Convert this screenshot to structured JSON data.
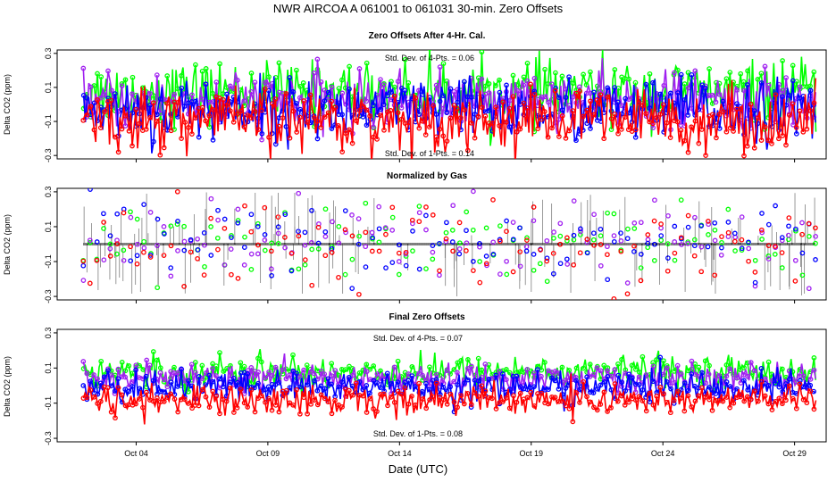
{
  "figure": {
    "main_title": "NWR   AIRCOA A   061001 to 061031   30-min. Zero Offsets",
    "xlabel": "Date (UTC)"
  },
  "colors": {
    "red": "#ff0000",
    "green": "#00ff00",
    "blue": "#0000ff",
    "purple": "#a020f0",
    "black": "#000000"
  },
  "chart_data": [
    {
      "type": "line",
      "title": "Zero Offsets After 4-Hr. Cal.",
      "ylabel": "Delta CO2 (ppm)",
      "xlim": [
        1.0,
        30.2
      ],
      "ylim": [
        -0.32,
        0.32
      ],
      "yticks": [
        -0.3,
        -0.1,
        0.1,
        0.3
      ],
      "ytick_labels": [
        "-0.3",
        "-0.1",
        "0.1",
        "0.3"
      ],
      "xticks": [
        4,
        9,
        14,
        19,
        24,
        29
      ],
      "xtick_labels": [
        "Oct 04",
        "Oct 09",
        "Oct 14",
        "Oct 19",
        "Oct 24",
        "Oct 29"
      ],
      "annotations": [
        "Std. Dev. of 4-Pts. = 0.06",
        "Std. Dev. of 1-Pts. = 0.14"
      ],
      "series": [
        {
          "name": "green",
          "color": "green",
          "x_start": 2.0,
          "x_end": 29.8,
          "points": 420,
          "mean": 0.07,
          "sd": 0.09
        },
        {
          "name": "purple",
          "color": "purple",
          "x_start": 2.0,
          "x_end": 29.8,
          "points": 420,
          "mean": 0.02,
          "sd": 0.08
        },
        {
          "name": "blue",
          "color": "blue",
          "x_start": 2.0,
          "x_end": 29.8,
          "points": 420,
          "mean": -0.03,
          "sd": 0.09
        },
        {
          "name": "red",
          "color": "red",
          "x_start": 2.0,
          "x_end": 29.8,
          "points": 420,
          "mean": -0.09,
          "sd": 0.09
        }
      ]
    },
    {
      "type": "scatter",
      "title": "Normalized by Gas",
      "ylabel": "Delta CO2 (ppm)",
      "xlim": [
        1.0,
        30.2
      ],
      "ylim": [
        -0.32,
        0.32
      ],
      "yticks": [
        -0.3,
        -0.1,
        0.1,
        0.3
      ],
      "ytick_labels": [
        "-0.3",
        "-0.1",
        "0.1",
        "0.3"
      ],
      "xticks": [
        4,
        9,
        14,
        19,
        24,
        29
      ],
      "xtick_labels": [
        "Oct 04",
        "Oct 09",
        "Oct 14",
        "Oct 19",
        "Oct 24",
        "Oct 29"
      ],
      "annotations": [],
      "baseline": {
        "name": "normalized mean",
        "color": "black",
        "style": "dotted",
        "value": 0.0
      },
      "series": [
        {
          "name": "green",
          "color": "green",
          "x_start": 2.0,
          "x_end": 29.8,
          "points": 110,
          "mean": 0.0,
          "sd": 0.12
        },
        {
          "name": "purple",
          "color": "purple",
          "x_start": 2.0,
          "x_end": 29.8,
          "points": 110,
          "mean": 0.0,
          "sd": 0.12
        },
        {
          "name": "blue",
          "color": "blue",
          "x_start": 2.0,
          "x_end": 29.8,
          "points": 110,
          "mean": 0.0,
          "sd": 0.12
        },
        {
          "name": "red",
          "color": "red",
          "x_start": 2.0,
          "x_end": 29.8,
          "points": 110,
          "mean": 0.0,
          "sd": 0.12
        }
      ]
    },
    {
      "type": "line",
      "title": "Final Zero Offsets",
      "ylabel": "Delta CO2 (ppm)",
      "xlim": [
        1.0,
        30.2
      ],
      "ylim": [
        -0.32,
        0.32
      ],
      "yticks": [
        -0.3,
        -0.1,
        0.1,
        0.3
      ],
      "ytick_labels": [
        "-0.3",
        "-0.1",
        "0.1",
        "0.3"
      ],
      "xticks": [
        4,
        9,
        14,
        19,
        24,
        29
      ],
      "xtick_labels": [
        "Oct 04",
        "Oct 09",
        "Oct 14",
        "Oct 19",
        "Oct 24",
        "Oct 29"
      ],
      "annotations": [
        "Std. Dev. of 4-Pts. = 0.07",
        "Std. Dev. of 1-Pts. = 0.08"
      ],
      "series": [
        {
          "name": "green",
          "color": "green",
          "x_start": 2.0,
          "x_end": 29.8,
          "points": 420,
          "mean": 0.08,
          "sd": 0.045
        },
        {
          "name": "purple",
          "color": "purple",
          "x_start": 2.0,
          "x_end": 29.8,
          "points": 420,
          "mean": 0.04,
          "sd": 0.04
        },
        {
          "name": "blue",
          "color": "blue",
          "x_start": 2.0,
          "x_end": 29.8,
          "points": 420,
          "mean": -0.01,
          "sd": 0.045
        },
        {
          "name": "red",
          "color": "red",
          "x_start": 2.0,
          "x_end": 29.8,
          "points": 420,
          "mean": -0.08,
          "sd": 0.045
        }
      ]
    }
  ]
}
